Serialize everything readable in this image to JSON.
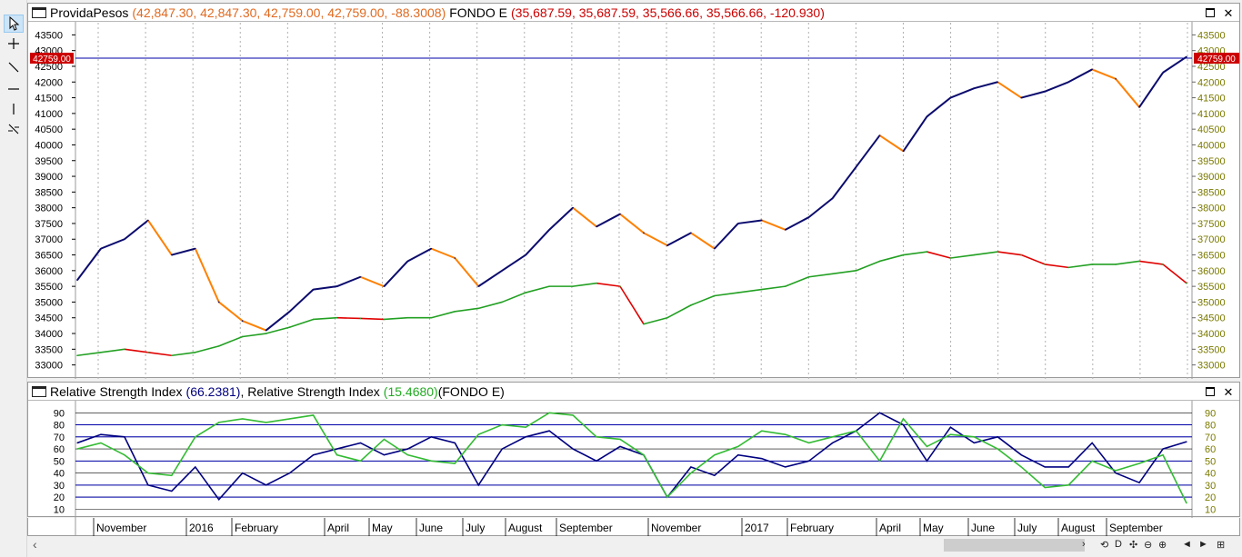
{
  "price_pane": {
    "title": "ProvidaPesos",
    "title_values": "(42,847.30, 42,847.30, 42,759.00, 42,759.00, -88.3008)",
    "second_title": "FONDO E",
    "second_values": "(35,687.59, 35,687.59, 35,566.66, 35,566.66, -120.930)",
    "price_label": "42759.00",
    "close_button": "✕"
  },
  "rsi_pane": {
    "title_a": "Relative Strength Index",
    "value_a": "(66.2381)",
    "title_b": "Relative Strength Index",
    "value_b": "(15.4680)",
    "suffix_b": "(FONDO E)",
    "close_button": "✕"
  },
  "icons": {
    "pointer": "pointer-icon",
    "crosshair": "crosshair-icon",
    "trendline": "trendline-icon",
    "horizontal": "horizontal-line-icon",
    "vertical": "vertical-line-icon",
    "fib": "fib-icon"
  },
  "status": {
    "controls": [
      "›",
      "⟲",
      "D",
      "✣",
      "⊖",
      "⊕",
      "◄",
      "►",
      "⊞"
    ]
  },
  "colors": {
    "up_bar": "#0b0b6e",
    "down_bar": "#ff8000",
    "fondo_up": "#22a022",
    "fondo_down": "#e00000",
    "rsi_a": "#000080",
    "rsi_b": "#33bb33",
    "price_axis_text": "#7a7a00",
    "title_values": "#e06a20",
    "second_values": "#cc0000",
    "rsi_value_a": "#000080",
    "rsi_value_b": "#22aa22",
    "hline": "#0000aa"
  },
  "chart_data": [
    {
      "type": "line",
      "title": "ProvidaPesos / FONDO E",
      "y_ticks": [
        33000,
        33500,
        34000,
        34500,
        35000,
        35500,
        36000,
        36500,
        37000,
        37500,
        38000,
        38500,
        39000,
        39500,
        40000,
        40500,
        41000,
        41500,
        42000,
        42500,
        43000,
        43500
      ],
      "ylim": [
        32700,
        43800
      ],
      "price_line": 42759.0,
      "x": [
        "2015-10-20",
        "2015-11-01",
        "2015-11-20",
        "2015-12-01",
        "2015-12-15",
        "2016-01-01",
        "2016-01-15",
        "2016-02-01",
        "2016-02-15",
        "2016-03-01",
        "2016-03-15",
        "2016-04-01",
        "2016-04-20",
        "2016-05-01",
        "2016-05-20",
        "2016-06-01",
        "2016-06-20",
        "2016-07-01",
        "2016-07-20",
        "2016-08-01",
        "2016-08-20",
        "2016-09-01",
        "2016-09-20",
        "2016-10-01",
        "2016-10-20",
        "2016-11-01",
        "2016-11-20",
        "2016-12-01",
        "2016-12-20",
        "2017-01-01",
        "2017-01-20",
        "2017-02-01",
        "2017-02-20",
        "2017-03-01",
        "2017-03-20",
        "2017-04-01",
        "2017-04-20",
        "2017-05-01",
        "2017-05-20",
        "2017-06-01",
        "2017-06-20",
        "2017-07-01",
        "2017-07-20",
        "2017-08-01",
        "2017-08-20",
        "2017-09-01",
        "2017-09-20",
        "2017-10-01"
      ],
      "series": [
        {
          "name": "ProvidaPesos",
          "values": [
            35700,
            36700,
            37000,
            37600,
            36500,
            36700,
            35000,
            34400,
            34100,
            34700,
            35400,
            35500,
            35800,
            35500,
            36300,
            36700,
            36400,
            35500,
            36000,
            36500,
            37300,
            38000,
            37400,
            37800,
            37200,
            36800,
            37200,
            36700,
            37500,
            37600,
            37300,
            37700,
            38300,
            39300,
            40300,
            39800,
            40900,
            41500,
            41800,
            42000,
            41500,
            41700,
            42000,
            42400,
            42100,
            41200,
            42300,
            42800
          ]
        },
        {
          "name": "FONDO E",
          "values": [
            33300,
            33400,
            33500,
            33400,
            33300,
            33400,
            33600,
            33900,
            34000,
            34200,
            34450,
            34500,
            34480,
            34450,
            34500,
            34500,
            34700,
            34800,
            35000,
            35300,
            35500,
            35500,
            35600,
            35500,
            34300,
            34500,
            34900,
            35200,
            35300,
            35400,
            35500,
            35800,
            35900,
            36000,
            36300,
            36500,
            36600,
            36400,
            36500,
            36600,
            36500,
            36200,
            36100,
            36200,
            36200,
            36300,
            36200,
            35600
          ]
        }
      ]
    },
    {
      "type": "line",
      "title": "Relative Strength Index",
      "y_ticks": [
        10,
        20,
        30,
        40,
        50,
        60,
        70,
        80,
        90
      ],
      "ylim": [
        5,
        97
      ],
      "hlines": [
        20,
        30,
        50,
        70,
        80
      ],
      "x_ticks": [
        "November",
        "2016",
        "February",
        "April",
        "May",
        "June",
        "July",
        "August",
        "September",
        "November",
        "2017",
        "February",
        "April",
        "May",
        "June",
        "July",
        "August",
        "September"
      ],
      "series": [
        {
          "name": "Relative Strength Index",
          "values": [
            65,
            72,
            70,
            30,
            25,
            45,
            18,
            40,
            30,
            40,
            55,
            60,
            65,
            55,
            60,
            70,
            65,
            30,
            60,
            70,
            75,
            60,
            50,
            62,
            55,
            20,
            45,
            38,
            55,
            52,
            45,
            50,
            65,
            75,
            90,
            80,
            50,
            78,
            65,
            70,
            55,
            45,
            45,
            65,
            40,
            32,
            60,
            66
          ]
        },
        {
          "name": "Relative Strength Index (FONDO E)",
          "values": [
            60,
            65,
            55,
            40,
            38,
            70,
            82,
            85,
            82,
            85,
            88,
            55,
            50,
            68,
            55,
            50,
            48,
            72,
            80,
            78,
            90,
            88,
            70,
            68,
            55,
            20,
            40,
            55,
            62,
            75,
            72,
            65,
            70,
            75,
            50,
            85,
            62,
            72,
            70,
            60,
            45,
            28,
            30,
            50,
            42,
            48,
            55,
            15
          ]
        }
      ]
    }
  ]
}
